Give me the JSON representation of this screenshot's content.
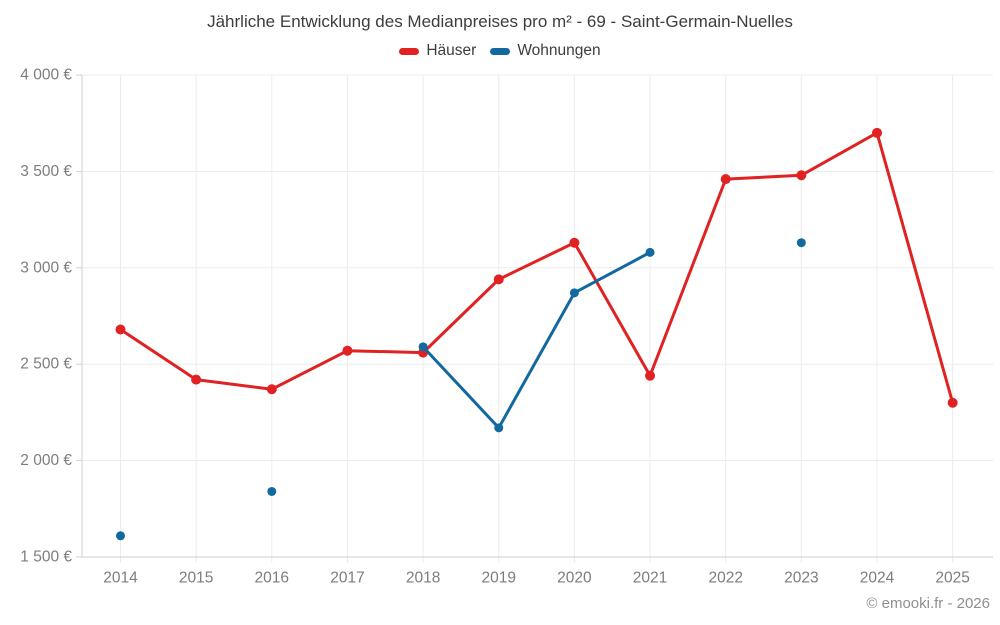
{
  "header": {
    "title": "Jährliche Entwicklung des Medianpreises pro m² - 69 - Saint-Germain-Nuelles"
  },
  "footer": {
    "credit": "© emooki.fr - 2026"
  },
  "chart_data": {
    "type": "line",
    "title": "Jährliche Entwicklung des Medianpreises pro m² - 69 - Saint-Germain-Nuelles",
    "x": [
      2014,
      2015,
      2016,
      2017,
      2018,
      2019,
      2020,
      2021,
      2022,
      2023,
      2024,
      2025
    ],
    "series": [
      {
        "name": "Häuser",
        "color": "#e02222",
        "values": [
          2680,
          2420,
          2370,
          2570,
          2560,
          2940,
          3130,
          2440,
          3460,
          3480,
          3700,
          2300
        ]
      },
      {
        "name": "Wohnungen",
        "color": "#12699f",
        "values": [
          1610,
          null,
          1840,
          null,
          2590,
          2170,
          2870,
          3080,
          null,
          3130,
          null,
          null
        ]
      }
    ],
    "ylim": [
      1500,
      4000
    ],
    "ytick_step": 500,
    "ytick_suffix": " €",
    "thousands_separator": " ",
    "connect_nulls": false,
    "grid": true,
    "legend_position": "top",
    "colors": {
      "grid": "#ececec",
      "axis": "#cfcfcf",
      "tick_label": "#7d7d7d"
    }
  }
}
